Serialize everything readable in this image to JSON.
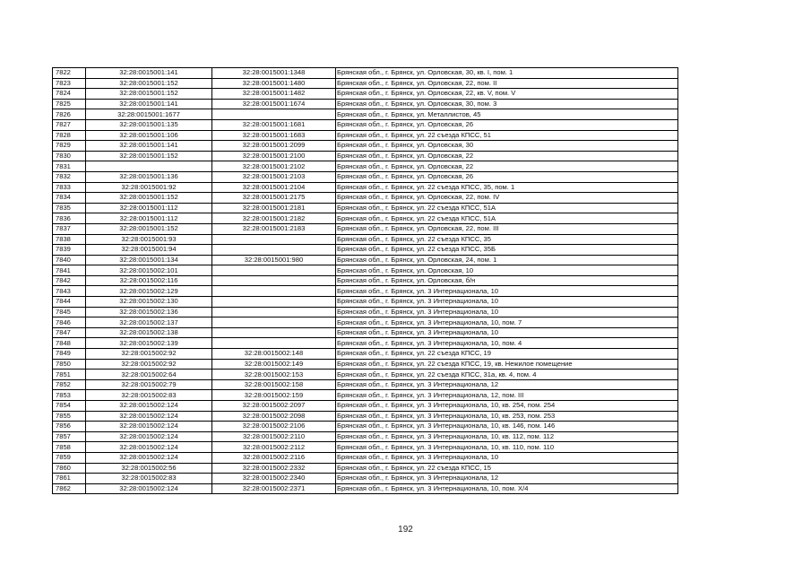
{
  "table": {
    "rows": [
      [
        "7822",
        "32:28:0015001:141",
        "32:28:0015001:1348",
        "Брянская обл., г. Брянск, ул. Орловская, 30, кв. I, пом. 1"
      ],
      [
        "7823",
        "32:28:0015001:152",
        "32:28:0015001:1480",
        "Брянская обл., г. Брянск, ул. Орловская, 22, пом. II"
      ],
      [
        "7824",
        "32:28:0015001:152",
        "32:28:0015001:1482",
        "Брянская обл., г. Брянск, ул. Орловская, 22, кв. V, пом. V"
      ],
      [
        "7825",
        "32:28:0015001:141",
        "32:28:0015001:1674",
        "Брянская обл., г. Брянск, ул. Орловская, 30, пом. 3"
      ],
      [
        "7826",
        "32:28:0015001:1677",
        "",
        "Брянская обл., г. Брянск, ул. Металлистов, 45"
      ],
      [
        "7827",
        "32:28:0015001:135",
        "32:28:0015001:1681",
        "Брянская обл., г. Брянск, ул. Орловская, 26"
      ],
      [
        "7828",
        "32:28:0015001:106",
        "32:28:0015001:1683",
        "Брянская обл., г. Брянск, ул. 22 съезда КПСС, 51"
      ],
      [
        "7829",
        "32:28:0015001:141",
        "32:28:0015001:2099",
        "Брянская обл., г. Брянск, ул. Орловская, 30"
      ],
      [
        "7830",
        "32:28:0015001:152",
        "32:28:0015001:2100",
        "Брянская обл., г. Брянск, ул. Орловская, 22"
      ],
      [
        "7831",
        "",
        "32:28:0015001:2102",
        "Брянская обл., г. Брянск, ул. Орловская, 22"
      ],
      [
        "7832",
        "32:28:0015001:136",
        "32:28:0015001:2103",
        "Брянская обл., г. Брянск, ул. Орловская, 26"
      ],
      [
        "7833",
        "32:28:0015001:92",
        "32:28:0015001:2104",
        "Брянская обл., г. Брянск, ул. 22 съезда КПСС, 35, пом. 1"
      ],
      [
        "7834",
        "32:28:0015001:152",
        "32:28:0015001:2175",
        "Брянская обл., г. Брянск, ул. Орловская, 22, пом. IV"
      ],
      [
        "7835",
        "32:28:0015001:112",
        "32:28:0015001:2181",
        "Брянская обл., г. Брянск, ул. 22 съезда КПСС, 51А"
      ],
      [
        "7836",
        "32:28:0015001:112",
        "32:28:0015001:2182",
        "Брянская обл., г. Брянск, ул. 22 съезда КПСС, 51А"
      ],
      [
        "7837",
        "32:28:0015001:152",
        "32:28:0015001:2183",
        "Брянская обл., г. Брянск, ул. Орловская, 22, пом. III"
      ],
      [
        "7838",
        "32:28:0015001:93",
        "",
        "Брянская обл., г. Брянск, ул. 22 съезда КПСС, 35"
      ],
      [
        "7839",
        "32:28:0015001:94",
        "",
        "Брянская обл., г. Брянск, ул. 22 съезда КПСС, 35Б"
      ],
      [
        "7840",
        "32:28:0015001:134",
        "32:28:0015001:980",
        "Брянская обл., г. Брянск, ул. Орловская, 24, пом. 1"
      ],
      [
        "7841",
        "32:28:0015002:101",
        "",
        "Брянская обл., г. Брянск, ул. Орловская, 10"
      ],
      [
        "7842",
        "32:28:0015002:116",
        "",
        "Брянская обл., г. Брянск, ул. Орловская, б/н"
      ],
      [
        "7843",
        "32:28:0015002:129",
        "",
        "Брянская обл., г. Брянск, ул. 3 Интернационала, 10"
      ],
      [
        "7844",
        "32:28:0015002:130",
        "",
        "Брянская обл., г. Брянск, ул. 3 Интернационала, 10"
      ],
      [
        "7845",
        "32:28:0015002:136",
        "",
        "Брянская обл., г. Брянск, ул. 3 Интернационала, 10"
      ],
      [
        "7846",
        "32:28:0015002:137",
        "",
        "Брянская обл., г. Брянск, ул. 3 Интернационала, 10, пом. 7"
      ],
      [
        "7847",
        "32:28:0015002:138",
        "",
        "Брянская обл., г. Брянск, ул. 3 Интернационала, 10"
      ],
      [
        "7848",
        "32:28:0015002:139",
        "",
        "Брянская обл., г. Брянск, ул. 3 Интернационала, 10, пом. 4"
      ],
      [
        "7849",
        "32:28:0015002:92",
        "32:28:0015002:148",
        "Брянская обл., г. Брянск, ул. 22 съезда КПСС, 19"
      ],
      [
        "7850",
        "32:28:0015002:92",
        "32:28:0015002:149",
        "Брянская обл., г. Брянск, ул. 22 съезда КПСС, 19, кв. Нежилое помещение"
      ],
      [
        "7851",
        "32:28:0015002:64",
        "32:28:0015002:153",
        "Брянская обл., г. Брянск, ул. 22 съезда КПСС, 31а, кв. 4, пом. 4"
      ],
      [
        "7852",
        "32:28:0015002:79",
        "32:28:0015002:158",
        "Брянская обл., г. Брянск, ул. 3 Интернационала, 12"
      ],
      [
        "7853",
        "32:28:0015002:83",
        "32:28:0015002:159",
        "Брянская обл., г. Брянск, ул. 3 Интернационала, 12, пом. III"
      ],
      [
        "7854",
        "32:28:0015002:124",
        "32:28:0015002:2097",
        "Брянская обл., г. Брянск, ул. 3 Интернационала, 10, кв. 254, пом. 254"
      ],
      [
        "7855",
        "32:28:0015002:124",
        "32:28:0015002:2098",
        "Брянская обл., г. Брянск, ул. 3 Интернационала, 10, кв. 253, пом. 253"
      ],
      [
        "7856",
        "32:28:0015002:124",
        "32:28:0015002:2106",
        "Брянская обл., г. Брянск, ул. 3 Интернационала, 10, кв. 146, пом. 146"
      ],
      [
        "7857",
        "32:28:0015002:124",
        "32:28:0015002:2110",
        "Брянская обл., г. Брянск, ул. 3 Интернационала, 10, кв. 112, пом. 112"
      ],
      [
        "7858",
        "32:28:0015002:124",
        "32:28:0015002:2112",
        "Брянская обл., г. Брянск, ул. 3 Интернационала, 10, кв. 110, пом. 110"
      ],
      [
        "7859",
        "32:28:0015002:124",
        "32:28:0015002:2116",
        "Брянская обл., г. Брянск, ул. 3 Интернационала, 10"
      ],
      [
        "7860",
        "32:28:0015002:56",
        "32:28:0015002:2332",
        "Брянская обл., г. Брянск, ул. 22 съезда КПСС, 15"
      ],
      [
        "7861",
        "32:28:0015002:83",
        "32:28:0015002:2340",
        "Брянская обл., г. Брянск, ул. 3 Интернационала, 12"
      ],
      [
        "7862",
        "32:28:0015002:124",
        "32:28:0015002:2371",
        "Брянская обл., г. Брянск, ул. 3 Интернационала, 10, пом. X/4"
      ]
    ]
  },
  "page_number": "192"
}
